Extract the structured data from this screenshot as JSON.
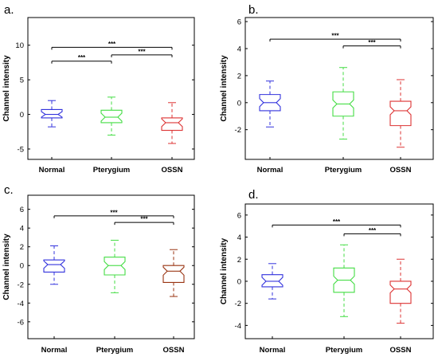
{
  "chart_data": [
    {
      "type": "box",
      "panel_label": "a.",
      "ylabel": "Channel intensity",
      "ylim": [
        -6.5,
        14
      ],
      "yticks": [
        "-5",
        "0",
        "5",
        "10"
      ],
      "categories": [
        "Normal",
        "Pterygium",
        "OSSN"
      ],
      "colors": [
        "#3333dd",
        "#44dd44",
        "#dd3333"
      ],
      "boxes": [
        {
          "min": -1.8,
          "q1": -0.5,
          "median": 0.0,
          "q3": 0.7,
          "max": 2.0
        },
        {
          "min": -3.0,
          "q1": -1.2,
          "median": -0.4,
          "q3": 0.6,
          "max": 2.5
        },
        {
          "min": -4.2,
          "q1": -2.3,
          "median": -1.2,
          "q3": -0.5,
          "max": 1.7
        }
      ],
      "brackets": [
        {
          "from": "Normal",
          "to": "OSSN",
          "y": 9.7,
          "label": "***"
        },
        {
          "from": "Pterygium",
          "to": "OSSN",
          "y": 8.6,
          "label": "***"
        },
        {
          "from": "Normal",
          "to": "Pterygium",
          "y": 7.7,
          "label": "***"
        }
      ]
    },
    {
      "type": "box",
      "panel_label": "b.",
      "ylabel": "Channel intensity",
      "ylim": [
        -4.2,
        6.3
      ],
      "yticks": [
        "-2",
        "0",
        "2",
        "4",
        "6"
      ],
      "categories": [
        "Normal",
        "Pterygium",
        "OSSN"
      ],
      "colors": [
        "#3333dd",
        "#44dd44",
        "#dd3333"
      ],
      "boxes": [
        {
          "min": -1.8,
          "q1": -0.6,
          "median": 0.0,
          "q3": 0.6,
          "max": 1.6
        },
        {
          "min": -2.7,
          "q1": -1.0,
          "median": -0.1,
          "q3": 0.8,
          "max": 2.6
        },
        {
          "min": -3.3,
          "q1": -1.7,
          "median": -0.6,
          "q3": 0.1,
          "max": 1.7
        }
      ],
      "brackets": [
        {
          "from": "Normal",
          "to": "OSSN",
          "y": 4.7,
          "label": "***"
        },
        {
          "from": "Pterygium",
          "to": "OSSN",
          "y": 4.2,
          "label": "***"
        }
      ]
    },
    {
      "type": "box",
      "panel_label": "c.",
      "ylabel": "Channel intensity",
      "ylim": [
        -7.8,
        7.5
      ],
      "yticks": [
        "-6",
        "-4",
        "-2",
        "0",
        "2",
        "4",
        "6"
      ],
      "categories": [
        "Normal",
        "Pterygium",
        "OSSN"
      ],
      "colors": [
        "#3333dd",
        "#44dd44",
        "#993311"
      ],
      "boxes": [
        {
          "min": -2.0,
          "q1": -0.7,
          "median": 0.1,
          "q3": 0.6,
          "max": 2.1
        },
        {
          "min": -2.9,
          "q1": -1.0,
          "median": 0.0,
          "q3": 0.9,
          "max": 2.7
        },
        {
          "min": -3.3,
          "q1": -1.8,
          "median": -0.6,
          "q3": 0.0,
          "max": 1.7
        }
      ],
      "brackets": [
        {
          "from": "Normal",
          "to": "OSSN",
          "y": 5.3,
          "label": "***"
        },
        {
          "from": "Pterygium",
          "to": "OSSN",
          "y": 4.6,
          "label": "***"
        }
      ]
    },
    {
      "type": "box",
      "panel_label": "d.",
      "ylabel": "Channel intensity",
      "ylim": [
        -5.2,
        7.0
      ],
      "yticks": [
        "-4",
        "-2",
        "0",
        "2",
        "4",
        "6"
      ],
      "categories": [
        "Normal",
        "Pterygium",
        "OSSN"
      ],
      "colors": [
        "#3333dd",
        "#44dd44",
        "#dd3333"
      ],
      "boxes": [
        {
          "min": -1.6,
          "q1": -0.5,
          "median": 0.0,
          "q3": 0.6,
          "max": 1.6
        },
        {
          "min": -3.2,
          "q1": -1.0,
          "median": 0.1,
          "q3": 1.2,
          "max": 3.3
        },
        {
          "min": -3.8,
          "q1": -2.0,
          "median": -0.7,
          "q3": 0.0,
          "max": 2.0
        }
      ],
      "brackets": [
        {
          "from": "Normal",
          "to": "OSSN",
          "y": 5.1,
          "label": "***"
        },
        {
          "from": "Pterygium",
          "to": "OSSN",
          "y": 4.3,
          "label": "***"
        }
      ]
    }
  ]
}
